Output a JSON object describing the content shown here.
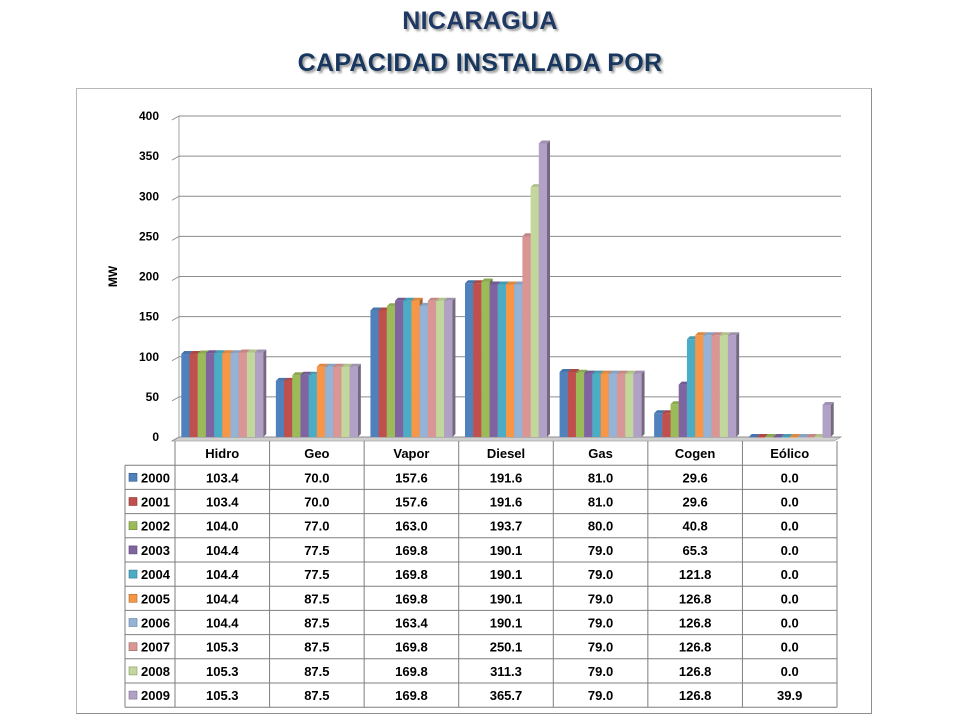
{
  "title": {
    "line1": "NICARAGUA",
    "line2": "CAPACIDAD INSTALADA POR"
  },
  "chart_data": {
    "type": "bar",
    "title": "",
    "xlabel": "",
    "ylabel": "MW",
    "ylim": [
      0,
      400
    ],
    "yticks": [
      0,
      50,
      100,
      150,
      200,
      250,
      300,
      350,
      400
    ],
    "grid": true,
    "legend": "data-table",
    "categories": [
      "Hidro",
      "Geo",
      "Vapor",
      "Diesel",
      "Gas",
      "Cogen",
      "Eólico"
    ],
    "series": [
      {
        "name": "2000",
        "color": "#4f81bd",
        "values": [
          103.4,
          70.0,
          157.6,
          191.6,
          81.0,
          29.6,
          0.0
        ]
      },
      {
        "name": "2001",
        "color": "#c0504d",
        "values": [
          103.4,
          70.0,
          157.6,
          191.6,
          81.0,
          29.6,
          0.0
        ]
      },
      {
        "name": "2002",
        "color": "#9bbb59",
        "values": [
          104.0,
          77.0,
          163.0,
          193.7,
          80.0,
          40.8,
          0.0
        ]
      },
      {
        "name": "2003",
        "color": "#8064a2",
        "values": [
          104.4,
          77.5,
          169.8,
          190.1,
          79.0,
          65.3,
          0.0
        ]
      },
      {
        "name": "2004",
        "color": "#4bacc6",
        "values": [
          104.4,
          77.5,
          169.8,
          190.1,
          79.0,
          121.8,
          0.0
        ]
      },
      {
        "name": "2005",
        "color": "#f79646",
        "values": [
          104.4,
          87.5,
          169.8,
          190.1,
          79.0,
          126.8,
          0.0
        ]
      },
      {
        "name": "2006",
        "color": "#95b3d7",
        "values": [
          104.4,
          87.5,
          163.4,
          190.1,
          79.0,
          126.8,
          0.0
        ]
      },
      {
        "name": "2007",
        "color": "#d99694",
        "values": [
          105.3,
          87.5,
          169.8,
          250.1,
          79.0,
          126.8,
          0.0
        ]
      },
      {
        "name": "2008",
        "color": "#c3d69b",
        "values": [
          105.3,
          87.5,
          169.8,
          311.3,
          79.0,
          126.8,
          0.0
        ]
      },
      {
        "name": "2009",
        "color": "#b2a1c7",
        "values": [
          105.3,
          87.5,
          169.8,
          365.7,
          79.0,
          126.8,
          39.9
        ]
      }
    ]
  }
}
